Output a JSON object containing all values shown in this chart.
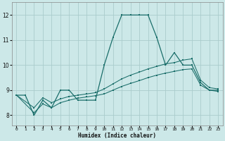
{
  "xlabel": "Humidex (Indice chaleur)",
  "bg_color": "#cce8e8",
  "grid_color": "#aacccc",
  "line_color": "#1a6e6a",
  "xlim": [
    -0.5,
    23.5
  ],
  "ylim": [
    7.6,
    12.5
  ],
  "xticks": [
    0,
    1,
    2,
    3,
    4,
    5,
    6,
    7,
    8,
    9,
    10,
    11,
    12,
    13,
    14,
    15,
    16,
    17,
    18,
    19,
    20,
    21,
    22,
    23
  ],
  "yticks": [
    8,
    9,
    10,
    11,
    12
  ],
  "series1_x": [
    0,
    1,
    2,
    3,
    4,
    5,
    6,
    7,
    8,
    9,
    10,
    11,
    12,
    13,
    14,
    15,
    16,
    17,
    18,
    19,
    20,
    21,
    22,
    23
  ],
  "series1_y": [
    8.8,
    8.8,
    8.0,
    8.6,
    8.3,
    9.0,
    9.0,
    8.6,
    8.6,
    8.6,
    10.0,
    11.1,
    12.0,
    12.0,
    12.0,
    12.0,
    11.1,
    10.0,
    10.5,
    10.0,
    10.0,
    9.3,
    9.0,
    9.0
  ],
  "series2_x": [
    0,
    2,
    3,
    4,
    5,
    6,
    7,
    8,
    9,
    10,
    11,
    12,
    13,
    14,
    15,
    16,
    17,
    18,
    19,
    20,
    21,
    22,
    23
  ],
  "series2_y": [
    8.8,
    8.3,
    8.7,
    8.5,
    8.65,
    8.75,
    8.8,
    8.85,
    8.9,
    9.05,
    9.25,
    9.45,
    9.6,
    9.72,
    9.85,
    9.95,
    10.05,
    10.1,
    10.2,
    10.25,
    9.4,
    9.1,
    9.05
  ],
  "series3_x": [
    0,
    2,
    3,
    4,
    5,
    6,
    7,
    8,
    9,
    10,
    11,
    12,
    13,
    14,
    15,
    16,
    17,
    18,
    19,
    20,
    21,
    22,
    23
  ],
  "series3_y": [
    8.8,
    8.1,
    8.45,
    8.3,
    8.5,
    8.6,
    8.68,
    8.73,
    8.78,
    8.85,
    9.0,
    9.15,
    9.27,
    9.38,
    9.5,
    9.6,
    9.68,
    9.75,
    9.82,
    9.85,
    9.2,
    9.0,
    8.95
  ]
}
